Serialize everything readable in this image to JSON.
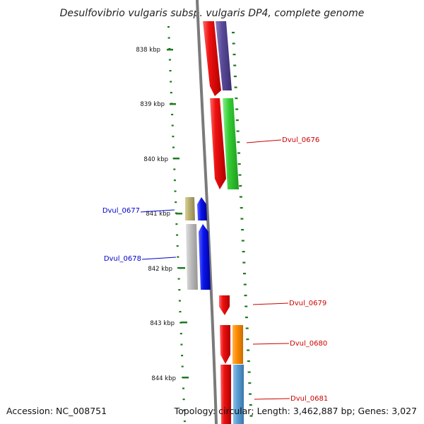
{
  "title": "Desulfovibrio vulgaris subsp. vulgaris DP4, complete genome",
  "accession": "Accession: NC_008751",
  "summary": "Topology: circular; Length: 3,462,887 bp; Genes: 3,027",
  "ticks": [
    {
      "label": "838 kbp"
    },
    {
      "label": "839 kbp"
    },
    {
      "label": "840 kbp"
    },
    {
      "label": "841 kbp"
    },
    {
      "label": "842 kbp"
    },
    {
      "label": "843 kbp"
    },
    {
      "label": "844 kbp"
    }
  ],
  "genes": [
    {
      "name": "Dvul_0676",
      "color": "#cc0000"
    },
    {
      "name": "Dvul_0677",
      "color": "#0000cc"
    },
    {
      "name": "Dvul_0678",
      "color": "#0000cc"
    },
    {
      "name": "Dvul_0679",
      "color": "#cc0000"
    },
    {
      "name": "Dvul_0680",
      "color": "#cc0000"
    },
    {
      "name": "Dvul_0681",
      "color": "#cc0000"
    }
  ],
  "colors": {
    "tick": "#1f7a1f",
    "backbone": "#808080",
    "feature_red": "#ee1111",
    "feature_purple": "#5a4a9a",
    "feature_green": "#33cc33",
    "feature_blue": "#0a14ee",
    "feature_khaki": "#b8b070",
    "feature_gray": "#bdbdbd",
    "feature_orange": "#ff8c00",
    "feature_steelblue": "#5a9fd4"
  }
}
